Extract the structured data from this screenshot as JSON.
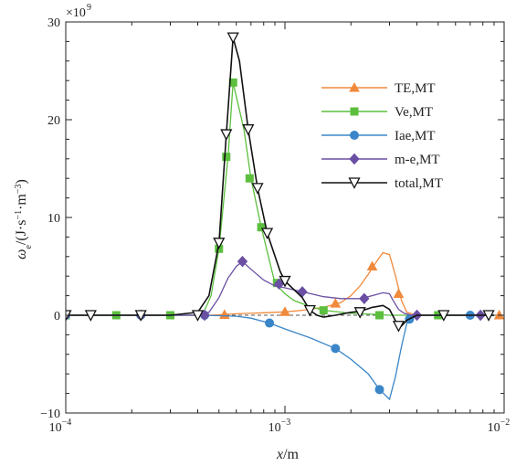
{
  "chart_data": {
    "type": "line",
    "xscale": "log",
    "xlim": [
      0.0001,
      0.01
    ],
    "ylim": [
      -10,
      30
    ],
    "yticks": [
      -10,
      0,
      10,
      20,
      30
    ],
    "xticks": [
      {
        "value": 0.0001,
        "base": "10",
        "exp": "−4"
      },
      {
        "value": 0.001,
        "base": "10",
        "exp": "−3"
      },
      {
        "value": 0.01,
        "base": "10",
        "exp": "−2"
      }
    ],
    "ytick_labels": [
      "−10",
      "0",
      "10",
      "20",
      "30"
    ],
    "y_multiplier": {
      "base": "×10",
      "exp": "9"
    },
    "xlabel": {
      "var": "x",
      "unit": "/m"
    },
    "ylabel": {
      "var": "ω",
      "sub": "e",
      "unit_prefix": "/(J·s",
      "exp1": "−1",
      "unit_mid": "·m",
      "exp2": "−3",
      "unit_suffix": ")"
    },
    "grid": false,
    "legend_position": "top-right",
    "series": [
      {
        "name": "TE,MT",
        "color": "#f08a3c",
        "marker": "triangle-up",
        "x": [
          0.0001,
          0.00013,
          0.0002,
          0.0003,
          0.0004,
          0.00045,
          0.0005,
          0.00055,
          0.0006,
          0.0007,
          0.0008,
          0.0009,
          0.001,
          0.0012,
          0.0015,
          0.0018,
          0.002,
          0.0022,
          0.0024,
          0.0026,
          0.0028,
          0.003,
          0.0032,
          0.0034,
          0.0036,
          0.004,
          0.005,
          0.007,
          0.009
        ],
        "y": [
          0,
          0,
          0,
          0,
          0,
          0,
          0.05,
          0.1,
          0.15,
          0.2,
          0.25,
          0.3,
          0.35,
          0.5,
          0.8,
          1.3,
          2,
          3,
          4.2,
          5.4,
          6.4,
          6.2,
          4,
          1.5,
          0.3,
          0,
          0,
          0,
          0
        ],
        "marker_x": [
          0.00053,
          0.001,
          0.0017,
          0.0025,
          0.0033,
          0.0095
        ],
        "marker_y": [
          0.05,
          0.35,
          1.2,
          5,
          2.2,
          0
        ]
      },
      {
        "name": "Ve,MT",
        "color": "#5cbf3e",
        "marker": "square",
        "x": [
          0.0001,
          0.0002,
          0.0003,
          0.0004,
          0.00043,
          0.00046,
          0.0005,
          0.00055,
          0.00058,
          0.00065,
          0.0007,
          0.00078,
          0.0009,
          0.001,
          0.0011,
          0.0013,
          0.0015,
          0.002,
          0.0025,
          0.003,
          0.004,
          0.005,
          0.007,
          0.009
        ],
        "y": [
          0,
          0,
          0,
          0,
          0.5,
          2,
          6.8,
          16.2,
          23.8,
          19,
          14,
          9,
          3.3,
          2.2,
          1.5,
          0.9,
          0.5,
          0.2,
          0.1,
          0,
          0,
          0,
          0,
          0
        ],
        "marker_x": [
          0.0001,
          0.00017,
          0.0003,
          0.0005,
          0.00054,
          0.00058,
          0.00069,
          0.00078,
          0.00092,
          0.0015,
          0.0027,
          0.005
        ],
        "marker_y": [
          0,
          0,
          0,
          6.8,
          16.2,
          23.8,
          14,
          9,
          3.3,
          0.5,
          0,
          0
        ]
      },
      {
        "name": "Iae,MT",
        "color": "#3a86c8",
        "marker": "circle",
        "x": [
          0.0001,
          0.0002,
          0.0003,
          0.0004,
          0.0005,
          0.0006,
          0.0007,
          0.00085,
          0.001,
          0.0013,
          0.0017,
          0.002,
          0.0024,
          0.0027,
          0.003,
          0.0032,
          0.0034,
          0.0036,
          0.0037,
          0.004,
          0.005,
          0.007,
          0.009
        ],
        "y": [
          0,
          0,
          0,
          0,
          -0.05,
          -0.1,
          -0.3,
          -0.8,
          -1.4,
          -2.3,
          -3.4,
          -4.5,
          -6,
          -7.6,
          -8.6,
          -6.2,
          -3.2,
          -0.8,
          -0.4,
          0,
          0,
          0,
          0
        ],
        "marker_x": [
          0.0001,
          0.00022,
          0.00043,
          0.00085,
          0.0017,
          0.0027,
          0.0037,
          0.007
        ],
        "marker_y": [
          0,
          0,
          0,
          -0.8,
          -3.4,
          -7.6,
          -0.4,
          0
        ]
      },
      {
        "name": "m-e,MT",
        "color": "#6a4fa3",
        "marker": "diamond",
        "x": [
          0.0001,
          0.0002,
          0.0003,
          0.0004,
          0.00045,
          0.0005,
          0.00055,
          0.0006,
          0.00064,
          0.0007,
          0.0008,
          0.0009,
          0.001,
          0.0012,
          0.0015,
          0.0018,
          0.0022,
          0.0025,
          0.0028,
          0.003,
          0.0031,
          0.0033,
          0.0035,
          0.0038,
          0.004,
          0.005,
          0.007,
          0.009
        ],
        "y": [
          0,
          0,
          0,
          0,
          0.3,
          1.8,
          3.8,
          5,
          5.5,
          4.7,
          3.6,
          3,
          2.8,
          2.4,
          1.9,
          1.7,
          1.7,
          2,
          2.3,
          2.2,
          1.6,
          0.6,
          0.2,
          0,
          0,
          0,
          0,
          0
        ],
        "marker_x": [
          0.0001,
          0.00022,
          0.00043,
          0.00064,
          0.00094,
          0.0012,
          0.0023,
          0.004,
          0.0078
        ],
        "marker_y": [
          0,
          0,
          0,
          5.5,
          3.2,
          2.4,
          1.7,
          0,
          0
        ]
      },
      {
        "name": "total,MT",
        "color": "#111111",
        "marker": "triangle-down-open",
        "x": [
          0.0001,
          0.00012,
          0.0002,
          0.0003,
          0.0004,
          0.00045,
          0.0005,
          0.00054,
          0.00058,
          0.00062,
          0.00068,
          0.00075,
          0.00083,
          0.00095,
          0.001,
          0.0012,
          0.0013,
          0.0014,
          0.0015,
          0.0017,
          0.002,
          0.0022,
          0.0025,
          0.0028,
          0.003,
          0.0032,
          0.0034,
          0.0036,
          0.004,
          0.005,
          0.006,
          0.008,
          0.009
        ],
        "y": [
          0,
          0,
          0,
          0,
          0.3,
          2,
          7.4,
          18.5,
          28.4,
          26,
          19,
          13,
          8.4,
          4.5,
          3.5,
          1.8,
          0.5,
          0,
          -0.2,
          0,
          0.3,
          0.4,
          0.8,
          1,
          0.6,
          -0.6,
          -1.1,
          -0.5,
          0,
          0,
          0,
          0,
          0
        ],
        "marker_x": [
          0.0001,
          0.00013,
          0.00022,
          0.0004,
          0.0005,
          0.00054,
          0.00058,
          0.00068,
          0.00075,
          0.00083,
          0.001,
          0.0013,
          0.0022,
          0.0033,
          0.0053,
          0.0085
        ],
        "marker_y": [
          0,
          0,
          0,
          0,
          7.4,
          18.5,
          28.4,
          19,
          13,
          8.4,
          3.5,
          0.5,
          0.3,
          -1.1,
          0,
          0
        ]
      }
    ]
  }
}
